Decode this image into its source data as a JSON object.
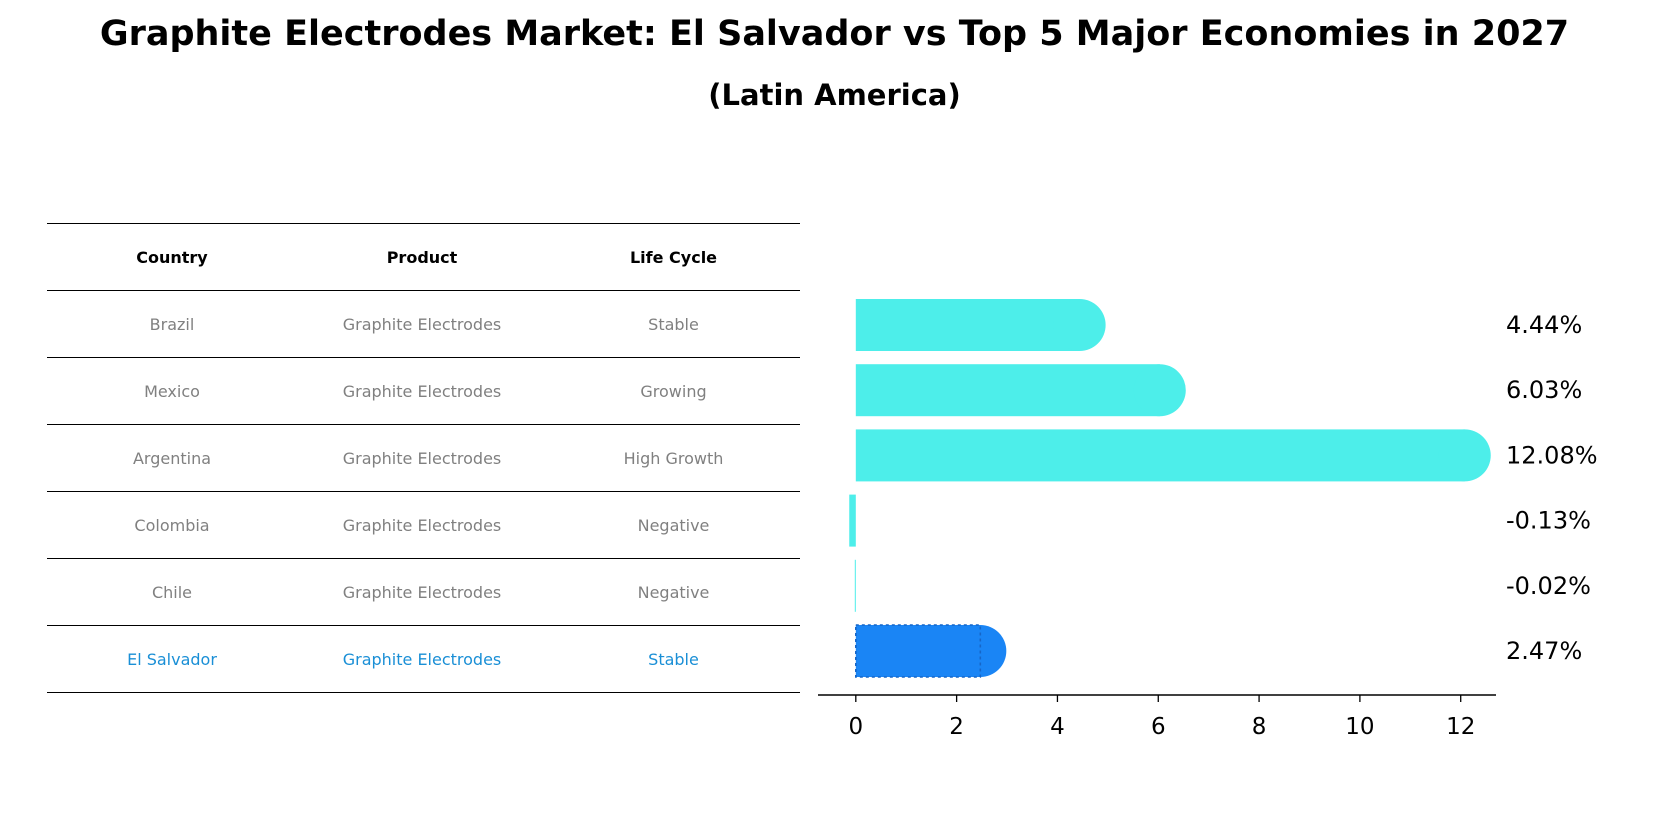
{
  "title": "Graphite Electrodes Market: El Salvador vs Top 5 Major Economies in 2027",
  "subtitle": "(Latin America)",
  "table": {
    "headers": [
      "Country",
      "Product",
      "Life Cycle"
    ],
    "rows": [
      [
        "Brazil",
        "Graphite Electrodes",
        "Stable"
      ],
      [
        "Mexico",
        "Graphite Electrodes",
        "Growing"
      ],
      [
        "Argentina",
        "Graphite Electrodes",
        "High Growth"
      ],
      [
        "Colombia",
        "Graphite Electrodes",
        "Negative"
      ],
      [
        "Chile",
        "Graphite Electrodes",
        "Negative"
      ],
      [
        "El Salvador",
        "Graphite Electrodes",
        "Stable"
      ]
    ],
    "highlight_row": 5,
    "highlight_color": "#1a8fd6"
  },
  "chart_data": {
    "type": "bar",
    "orientation": "horizontal",
    "categories": [
      "Brazil",
      "Mexico",
      "Argentina",
      "Colombia",
      "Chile",
      "El Salvador"
    ],
    "values": [
      4.44,
      6.03,
      12.08,
      -0.13,
      -0.02,
      2.47
    ],
    "value_labels": [
      "4.44%",
      "6.03%",
      "12.08%",
      "-0.13%",
      "-0.02%",
      "2.47%"
    ],
    "xlim": [
      -0.75,
      12.7
    ],
    "xticks": [
      0,
      2,
      4,
      6,
      8,
      10,
      12
    ],
    "xtick_labels": [
      "0",
      "2",
      "4",
      "6",
      "8",
      "10",
      "12"
    ],
    "colors": [
      "#4deeea",
      "#4deeea",
      "#4deeea",
      "#4deeea",
      "#4deeea",
      "#1a85f5"
    ],
    "highlight_index": 5,
    "grid": false,
    "legend": "none"
  }
}
